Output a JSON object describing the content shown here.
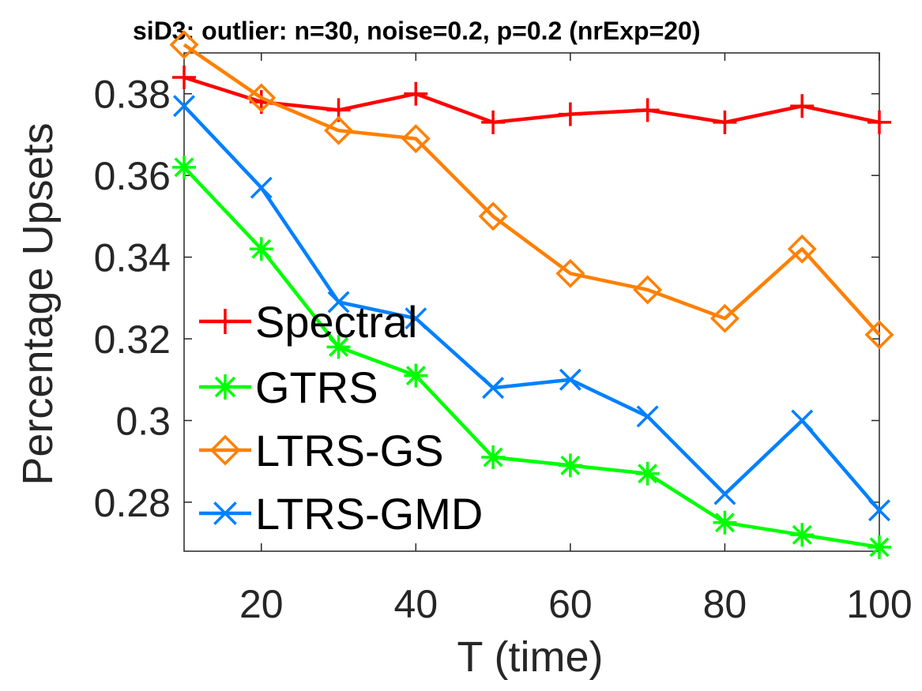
{
  "chart_data": {
    "type": "line",
    "title": "siD3: outlier: n=30, noise=0.2, p=0.2 (nrExp=20)",
    "xlabel": "T (time)",
    "ylabel": "Percentage Upsets",
    "x": [
      10,
      20,
      30,
      40,
      50,
      60,
      70,
      80,
      90,
      100
    ],
    "xlim": [
      10,
      100
    ],
    "ylim": [
      0.268,
      0.39
    ],
    "xticks": [
      20,
      40,
      60,
      80,
      100
    ],
    "xtick_labels": [
      "20",
      "40",
      "60",
      "80",
      "100"
    ],
    "yticks": [
      0.28,
      0.3,
      0.32,
      0.34,
      0.36,
      0.38
    ],
    "ytick_labels": [
      "0.28",
      "0.3",
      "0.32",
      "0.34",
      "0.36",
      "0.38"
    ],
    "grid": false,
    "legend_position": "center-left",
    "series": [
      {
        "name": "Spectral",
        "color": "#ff0000",
        "marker": "plus",
        "values": [
          0.384,
          0.378,
          0.376,
          0.38,
          0.373,
          0.375,
          0.376,
          0.373,
          0.377,
          0.373
        ]
      },
      {
        "name": "GTRS",
        "color": "#00ff00",
        "marker": "asterisk",
        "values": [
          0.362,
          0.342,
          0.318,
          0.311,
          0.291,
          0.289,
          0.287,
          0.275,
          0.272,
          0.269
        ]
      },
      {
        "name": "LTRS-GS",
        "color": "#ff8000",
        "marker": "diamond",
        "values": [
          0.392,
          0.379,
          0.371,
          0.369,
          0.35,
          0.336,
          0.332,
          0.325,
          0.342,
          0.321
        ]
      },
      {
        "name": "LTRS-GMD",
        "color": "#0080ff",
        "marker": "x",
        "values": [
          0.377,
          0.357,
          0.329,
          0.325,
          0.308,
          0.31,
          0.301,
          0.282,
          0.3,
          0.278
        ]
      }
    ]
  }
}
